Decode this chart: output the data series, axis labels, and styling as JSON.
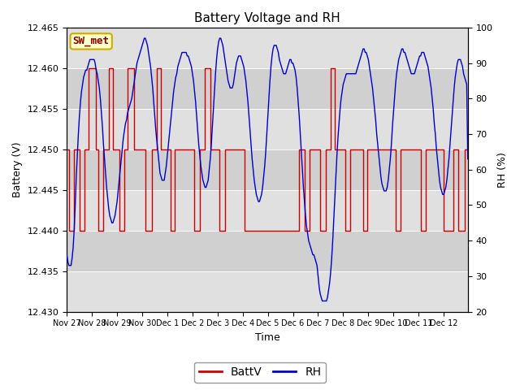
{
  "title": "Battery Voltage and RH",
  "xlabel": "Time",
  "ylabel_left": "Battery (V)",
  "ylabel_right": "RH (%)",
  "ylim_left": [
    12.43,
    12.465
  ],
  "ylim_right": [
    20,
    100
  ],
  "yticks_left": [
    12.43,
    12.435,
    12.44,
    12.445,
    12.45,
    12.455,
    12.46,
    12.465
  ],
  "yticks_right": [
    20,
    30,
    40,
    50,
    60,
    70,
    80,
    90,
    100
  ],
  "xtick_labels": [
    "Nov 27",
    "Nov 28",
    "Nov 29",
    "Nov 30",
    "Dec 1",
    "Dec 2",
    "Dec 3",
    "Dec 4",
    "Dec 5",
    "Dec 6",
    "Dec 7",
    "Dec 8",
    "Dec 9",
    "Dec 10",
    "Dec 11",
    "Dec 12"
  ],
  "xtick_positions": [
    0,
    24,
    48,
    72,
    96,
    120,
    144,
    168,
    192,
    216,
    240,
    264,
    288,
    312,
    336,
    360
  ],
  "total_points": 384,
  "station_label": "SW_met",
  "bg_color": "#ffffff",
  "plot_bg": "#e8e8e8",
  "line_color_batt": "#cc0000",
  "line_color_rh": "#0000cc",
  "band_colors": [
    "#e0e0e0",
    "#d0d0d0"
  ],
  "batt_v": [
    12.45,
    12.45,
    12.44,
    12.44,
    12.44,
    12.44,
    12.44,
    12.45,
    12.45,
    12.45,
    12.45,
    12.45,
    12.44,
    12.44,
    12.44,
    12.44,
    12.44,
    12.45,
    12.45,
    12.45,
    12.45,
    12.46,
    12.46,
    12.46,
    12.46,
    12.46,
    12.46,
    12.46,
    12.45,
    12.45,
    12.44,
    12.44,
    12.44,
    12.44,
    12.44,
    12.45,
    12.45,
    12.45,
    12.45,
    12.45,
    12.46,
    12.46,
    12.46,
    12.46,
    12.45,
    12.45,
    12.45,
    12.45,
    12.45,
    12.45,
    12.44,
    12.44,
    12.44,
    12.44,
    12.44,
    12.45,
    12.45,
    12.45,
    12.46,
    12.46,
    12.46,
    12.46,
    12.46,
    12.46,
    12.45,
    12.45,
    12.45,
    12.45,
    12.45,
    12.45,
    12.45,
    12.45,
    12.45,
    12.45,
    12.45,
    12.44,
    12.44,
    12.44,
    12.44,
    12.44,
    12.44,
    12.45,
    12.45,
    12.45,
    12.45,
    12.45,
    12.46,
    12.46,
    12.46,
    12.46,
    12.45,
    12.45,
    12.45,
    12.45,
    12.45,
    12.45,
    12.45,
    12.45,
    12.45,
    12.44,
    12.44,
    12.44,
    12.44,
    12.45,
    12.45,
    12.45,
    12.45,
    12.45,
    12.45,
    12.45,
    12.45,
    12.45,
    12.45,
    12.45,
    12.45,
    12.45,
    12.45,
    12.45,
    12.45,
    12.45,
    12.45,
    12.45,
    12.44,
    12.44,
    12.44,
    12.44,
    12.44,
    12.45,
    12.45,
    12.45,
    12.45,
    12.45,
    12.46,
    12.46,
    12.46,
    12.46,
    12.46,
    12.45,
    12.45,
    12.45,
    12.45,
    12.45,
    12.45,
    12.45,
    12.45,
    12.45,
    12.44,
    12.44,
    12.44,
    12.44,
    12.44,
    12.45,
    12.45,
    12.45,
    12.45,
    12.45,
    12.45,
    12.45,
    12.45,
    12.45,
    12.45,
    12.45,
    12.45,
    12.45,
    12.45,
    12.45,
    12.45,
    12.45,
    12.45,
    12.45,
    12.44,
    12.44,
    12.44,
    12.44,
    12.44,
    12.44,
    12.44,
    12.44,
    12.44,
    12.44,
    12.44,
    12.44,
    12.44,
    12.44,
    12.44,
    12.44,
    12.44,
    12.44,
    12.44,
    12.44,
    12.44,
    12.44,
    12.44,
    12.44,
    12.44,
    12.44,
    12.44,
    12.44,
    12.44,
    12.44,
    12.44,
    12.44,
    12.44,
    12.44,
    12.44,
    12.44,
    12.44,
    12.44,
    12.44,
    12.44,
    12.44,
    12.44,
    12.44,
    12.44,
    12.44,
    12.44,
    12.44,
    12.44,
    12.44,
    12.44,
    12.44,
    12.44,
    12.45,
    12.45,
    12.45,
    12.45,
    12.45,
    12.44,
    12.44,
    12.44,
    12.44,
    12.44,
    12.45,
    12.45,
    12.45,
    12.45,
    12.45,
    12.45,
    12.45,
    12.45,
    12.45,
    12.45,
    12.44,
    12.44,
    12.44,
    12.44,
    12.44,
    12.45,
    12.45,
    12.45,
    12.45,
    12.45,
    12.46,
    12.46,
    12.46,
    12.46,
    12.45,
    12.45,
    12.45,
    12.45,
    12.45,
    12.45,
    12.45,
    12.45,
    12.45,
    12.45,
    12.44,
    12.44,
    12.44,
    12.44,
    12.44,
    12.45,
    12.45,
    12.45,
    12.45,
    12.45,
    12.45,
    12.45,
    12.45,
    12.45,
    12.45,
    12.45,
    12.45,
    12.44,
    12.44,
    12.44,
    12.44,
    12.45,
    12.45,
    12.45,
    12.45,
    12.45,
    12.45,
    12.45,
    12.45,
    12.45,
    12.45,
    12.45,
    12.45,
    12.45,
    12.45,
    12.45,
    12.45,
    12.45,
    12.45,
    12.45,
    12.45,
    12.45,
    12.45,
    12.45,
    12.45,
    12.45,
    12.45,
    12.45,
    12.44,
    12.44,
    12.44,
    12.44,
    12.44,
    12.45,
    12.45,
    12.45,
    12.45,
    12.45,
    12.45,
    12.45,
    12.45,
    12.45,
    12.45,
    12.45,
    12.45,
    12.45,
    12.45,
    12.45,
    12.45,
    12.45,
    12.45,
    12.45,
    12.44,
    12.44,
    12.44,
    12.44,
    12.44,
    12.45,
    12.45,
    12.45,
    12.45,
    12.45,
    12.45,
    12.45,
    12.45,
    12.45,
    12.45,
    12.45,
    12.45,
    12.45,
    12.45,
    12.45,
    12.45,
    12.45,
    12.44,
    12.44,
    12.44,
    12.44,
    12.44,
    12.44,
    12.44,
    12.44,
    12.44,
    12.45,
    12.45,
    12.45,
    12.45,
    12.45,
    12.44,
    12.44,
    12.44,
    12.44,
    12.44,
    12.44,
    12.45,
    12.45,
    12.45,
    12.45
  ],
  "rh": [
    36,
    34,
    33,
    33,
    33,
    35,
    38,
    43,
    50,
    58,
    64,
    70,
    75,
    79,
    82,
    84,
    86,
    87,
    88,
    88,
    89,
    90,
    91,
    91,
    91,
    91,
    91,
    90,
    88,
    87,
    85,
    83,
    80,
    76,
    72,
    67,
    63,
    59,
    55,
    52,
    49,
    47,
    46,
    45,
    45,
    46,
    47,
    49,
    51,
    54,
    57,
    60,
    63,
    66,
    69,
    71,
    73,
    74,
    76,
    77,
    78,
    79,
    80,
    82,
    84,
    86,
    88,
    90,
    91,
    92,
    93,
    94,
    95,
    96,
    97,
    97,
    96,
    95,
    93,
    91,
    89,
    86,
    83,
    79,
    75,
    71,
    68,
    65,
    62,
    59,
    58,
    57,
    57,
    57,
    59,
    61,
    64,
    67,
    70,
    73,
    76,
    79,
    82,
    84,
    86,
    87,
    89,
    90,
    91,
    92,
    93,
    93,
    93,
    93,
    93,
    92,
    92,
    91,
    90,
    89,
    87,
    85,
    82,
    79,
    75,
    71,
    67,
    64,
    61,
    59,
    57,
    56,
    55,
    55,
    56,
    57,
    60,
    63,
    67,
    72,
    77,
    82,
    87,
    91,
    94,
    96,
    97,
    97,
    96,
    95,
    93,
    91,
    89,
    87,
    85,
    84,
    83,
    83,
    83,
    84,
    86,
    88,
    90,
    91,
    92,
    92,
    92,
    91,
    90,
    89,
    87,
    85,
    82,
    79,
    75,
    71,
    67,
    63,
    60,
    57,
    55,
    53,
    52,
    51,
    51,
    52,
    53,
    55,
    58,
    61,
    65,
    70,
    75,
    80,
    85,
    89,
    92,
    94,
    95,
    95,
    95,
    94,
    93,
    91,
    90,
    89,
    88,
    87,
    87,
    87,
    88,
    89,
    90,
    91,
    91,
    90,
    90,
    89,
    88,
    86,
    83,
    79,
    75,
    70,
    65,
    60,
    55,
    51,
    47,
    44,
    42,
    40,
    39,
    38,
    37,
    36,
    36,
    35,
    34,
    33,
    30,
    27,
    25,
    24,
    23,
    23,
    23,
    23,
    23,
    24,
    26,
    28,
    31,
    35,
    40,
    46,
    52,
    58,
    64,
    69,
    73,
    77,
    80,
    82,
    84,
    85,
    86,
    87,
    87,
    87,
    87,
    87,
    87,
    87,
    87,
    87,
    87,
    88,
    89,
    90,
    91,
    92,
    93,
    94,
    94,
    93,
    93,
    92,
    91,
    89,
    87,
    85,
    83,
    80,
    77,
    74,
    70,
    67,
    64,
    61,
    58,
    56,
    55,
    54,
    54,
    54,
    55,
    57,
    60,
    63,
    67,
    72,
    76,
    80,
    84,
    87,
    89,
    91,
    92,
    93,
    94,
    94,
    93,
    93,
    92,
    91,
    90,
    89,
    88,
    87,
    87,
    87,
    87,
    88,
    89,
    90,
    91,
    92,
    92,
    93,
    93,
    93,
    92,
    91,
    90,
    89,
    87,
    85,
    83,
    80,
    77,
    73,
    70,
    66,
    63,
    60,
    57,
    55,
    54,
    53,
    53,
    54,
    55,
    57,
    60,
    63,
    67,
    71,
    75,
    79,
    83,
    86,
    88,
    90,
    91,
    91,
    91,
    90,
    89,
    87,
    86,
    85,
    84,
    63
  ]
}
